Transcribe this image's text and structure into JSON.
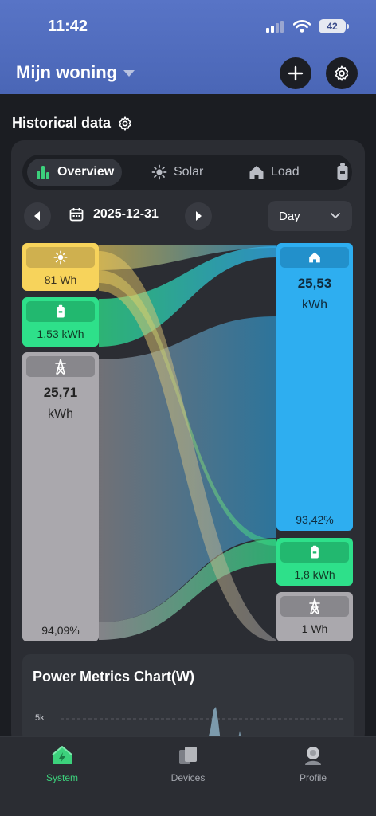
{
  "status": {
    "time": "11:42",
    "battery": "42"
  },
  "header": {
    "title": "Mijn woning",
    "add_icon": "plus-icon",
    "settings_icon": "gear-icon"
  },
  "section": {
    "title": "Historical data",
    "settings_icon": "gear-icon"
  },
  "tabs": [
    {
      "label": "Overview",
      "icon": "bar-chart-icon",
      "active": true
    },
    {
      "label": "Solar",
      "icon": "sun-icon",
      "active": false
    },
    {
      "label": "Load",
      "icon": "home-icon",
      "active": false
    },
    {
      "label": "B",
      "icon": "battery-icon",
      "active": false
    }
  ],
  "date_nav": {
    "date": "2025-12-31",
    "period": "Day"
  },
  "sankey": {
    "sources": [
      {
        "name": "solar",
        "icon": "sun-icon",
        "value": "81 Wh",
        "color": "#f7d35b"
      },
      {
        "name": "battery",
        "icon": "battery-icon",
        "value": "1,53 kWh",
        "color": "#2ee08a"
      },
      {
        "name": "grid",
        "icon": "pylon-icon",
        "value": "25,71",
        "unit": "kWh",
        "percent": "94,09%",
        "color": "#aaa8ad"
      }
    ],
    "targets": [
      {
        "name": "load",
        "icon": "home-icon",
        "value": "25,53",
        "unit": "kWh",
        "percent": "93,42%",
        "color": "#2eaef0"
      },
      {
        "name": "battery",
        "icon": "battery-icon",
        "value": "1,8 kWh",
        "color": "#2ee08a"
      },
      {
        "name": "grid",
        "icon": "pylon-icon",
        "value": "1 Wh",
        "color": "#aaa8ad"
      }
    ]
  },
  "metrics": {
    "title": "Power Metrics Chart(W)",
    "y_tick": "5k"
  },
  "tabbar": [
    {
      "label": "System",
      "icon": "system-icon",
      "active": true
    },
    {
      "label": "Devices",
      "icon": "devices-icon",
      "active": false
    },
    {
      "label": "Profile",
      "icon": "profile-icon",
      "active": false
    }
  ],
  "colors": {
    "accent": "#3cd17c",
    "header_bg": "#5470c3"
  }
}
